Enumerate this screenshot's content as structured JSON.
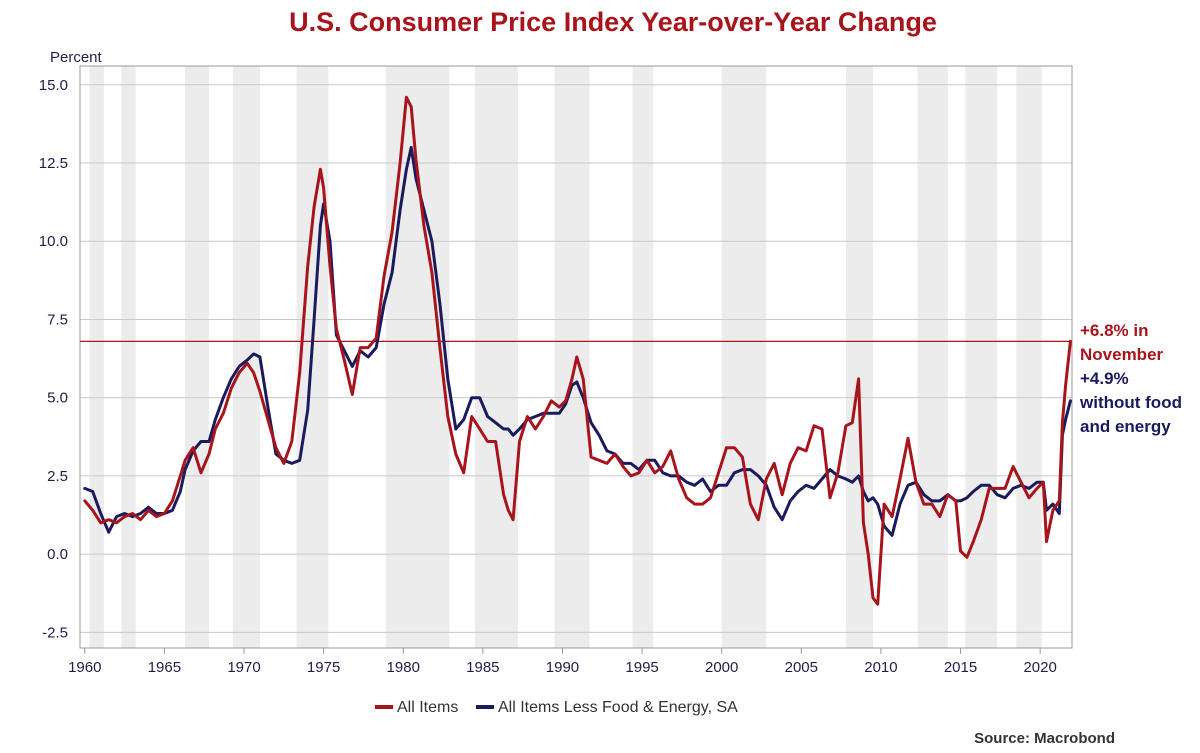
{
  "chart_data": {
    "type": "line",
    "title": "U.S. Consumer Price Index Year-over-Year Change",
    "ylabel": "Percent",
    "xlabel": "",
    "xlim": [
      1959.7,
      2022.0
    ],
    "ylim": [
      -3.0,
      15.6
    ],
    "yticks": [
      15.0,
      12.5,
      10.0,
      7.5,
      5.0,
      2.5,
      0.0,
      -2.5
    ],
    "ytick_labels": [
      "15.0",
      "12.5",
      "10.0",
      "7.5",
      "5.0",
      "2.5",
      "0.0",
      "-2.5"
    ],
    "xticks": [
      1960,
      1965,
      1970,
      1975,
      1980,
      1985,
      1990,
      1995,
      2000,
      2005,
      2010,
      2015,
      2020
    ],
    "xtick_labels": [
      "1960",
      "1965",
      "1970",
      "1975",
      "1980",
      "1985",
      "1990",
      "1995",
      "2000",
      "2005",
      "2010",
      "2015",
      "2020"
    ],
    "grid": "horizontal",
    "legend_position": "bottom-center",
    "shaded_periods": [
      [
        1960.3,
        1961.2
      ],
      [
        1962.3,
        1963.2
      ],
      [
        1966.3,
        1967.8
      ],
      [
        1969.3,
        1971.0
      ],
      [
        1973.3,
        1975.3
      ],
      [
        1978.9,
        1982.9
      ],
      [
        1984.5,
        1987.2
      ],
      [
        1989.5,
        1991.7
      ],
      [
        1994.4,
        1995.7
      ],
      [
        2000.0,
        2002.8
      ],
      [
        2007.8,
        2009.5
      ],
      [
        2012.3,
        2014.2
      ],
      [
        2015.3,
        2017.3
      ],
      [
        2018.5,
        2020.1
      ]
    ],
    "reference_line": {
      "y": 6.8,
      "color": "#a8141b"
    },
    "series": [
      {
        "name": "All Items",
        "color": "#a8141b",
        "x": [
          1960.0,
          1960.5,
          1961.0,
          1961.5,
          1962.0,
          1962.5,
          1963.0,
          1963.5,
          1964.0,
          1964.5,
          1965.0,
          1965.5,
          1966.0,
          1966.3,
          1966.8,
          1967.3,
          1967.8,
          1968.2,
          1968.7,
          1969.2,
          1969.7,
          1970.2,
          1970.6,
          1971.0,
          1971.5,
          1972.0,
          1972.5,
          1973.0,
          1973.5,
          1974.0,
          1974.4,
          1974.8,
          1975.0,
          1975.4,
          1975.8,
          1976.3,
          1976.8,
          1977.3,
          1977.8,
          1978.3,
          1978.8,
          1979.3,
          1979.8,
          1980.2,
          1980.5,
          1980.8,
          1981.3,
          1981.8,
          1982.3,
          1982.8,
          1983.3,
          1983.8,
          1984.3,
          1984.8,
          1985.3,
          1985.8,
          1986.3,
          1986.6,
          1986.9,
          1987.3,
          1987.8,
          1988.3,
          1988.8,
          1989.3,
          1989.8,
          1990.2,
          1990.6,
          1990.9,
          1991.3,
          1991.8,
          1992.3,
          1992.8,
          1993.3,
          1993.8,
          1994.3,
          1994.8,
          1995.3,
          1995.8,
          1996.3,
          1996.8,
          1997.3,
          1997.8,
          1998.3,
          1998.8,
          1999.3,
          1999.8,
          2000.3,
          2000.8,
          2001.3,
          2001.8,
          2002.3,
          2002.8,
          2003.3,
          2003.8,
          2004.3,
          2004.8,
          2005.3,
          2005.8,
          2006.3,
          2006.8,
          2007.3,
          2007.8,
          2008.2,
          2008.6,
          2008.9,
          2009.2,
          2009.5,
          2009.8,
          2010.2,
          2010.7,
          2011.2,
          2011.7,
          2012.2,
          2012.7,
          2013.2,
          2013.7,
          2014.2,
          2014.7,
          2015.0,
          2015.4,
          2015.8,
          2016.3,
          2016.8,
          2017.3,
          2017.8,
          2018.3,
          2018.8,
          2019.3,
          2019.8,
          2020.2,
          2020.4,
          2020.8,
          2021.2,
          2021.4,
          2021.6,
          2021.9
        ],
        "values": [
          1.7,
          1.4,
          1.0,
          1.1,
          1.0,
          1.2,
          1.3,
          1.1,
          1.4,
          1.2,
          1.3,
          1.7,
          2.5,
          3.0,
          3.4,
          2.6,
          3.2,
          4.0,
          4.5,
          5.3,
          5.8,
          6.1,
          5.8,
          5.2,
          4.3,
          3.4,
          2.9,
          3.6,
          5.8,
          9.2,
          11.1,
          12.3,
          11.7,
          9.2,
          7.2,
          6.2,
          5.1,
          6.6,
          6.6,
          6.9,
          8.9,
          10.3,
          12.5,
          14.6,
          14.3,
          12.6,
          10.5,
          9.0,
          6.6,
          4.4,
          3.2,
          2.6,
          4.4,
          4.0,
          3.6,
          3.6,
          1.9,
          1.4,
          1.1,
          3.6,
          4.4,
          4.0,
          4.4,
          4.9,
          4.7,
          4.9,
          5.6,
          6.3,
          5.6,
          3.1,
          3.0,
          2.9,
          3.2,
          2.8,
          2.5,
          2.6,
          3.0,
          2.6,
          2.8,
          3.3,
          2.4,
          1.8,
          1.6,
          1.6,
          1.8,
          2.6,
          3.4,
          3.4,
          3.1,
          1.6,
          1.1,
          2.4,
          2.9,
          1.9,
          2.9,
          3.4,
          3.3,
          4.1,
          4.0,
          1.8,
          2.6,
          4.1,
          4.2,
          5.6,
          1.0,
          0.0,
          -1.4,
          -1.6,
          1.6,
          1.2,
          2.4,
          3.7,
          2.3,
          1.6,
          1.6,
          1.2,
          1.9,
          1.7,
          0.1,
          -0.1,
          0.4,
          1.1,
          2.1,
          2.1,
          2.1,
          2.8,
          2.3,
          1.8,
          2.1,
          2.3,
          0.4,
          1.4,
          1.7,
          4.2,
          5.4,
          6.8
        ]
      },
      {
        "name": "All Items Less Food & Energy, SA",
        "color": "#1a1a5e",
        "x": [
          1960.0,
          1960.5,
          1961.0,
          1961.5,
          1962.0,
          1962.5,
          1963.0,
          1963.5,
          1964.0,
          1964.5,
          1965.0,
          1965.5,
          1966.0,
          1966.3,
          1966.8,
          1967.3,
          1967.8,
          1968.2,
          1968.7,
          1969.2,
          1969.7,
          1970.2,
          1970.6,
          1971.0,
          1971.5,
          1972.0,
          1972.5,
          1973.0,
          1973.5,
          1974.0,
          1974.4,
          1974.8,
          1975.0,
          1975.4,
          1975.8,
          1976.3,
          1976.8,
          1977.3,
          1977.8,
          1978.3,
          1978.8,
          1979.3,
          1979.8,
          1980.2,
          1980.5,
          1980.8,
          1981.3,
          1981.8,
          1982.3,
          1982.8,
          1983.3,
          1983.8,
          1984.3,
          1984.8,
          1985.3,
          1985.8,
          1986.3,
          1986.6,
          1986.9,
          1987.3,
          1987.8,
          1988.3,
          1988.8,
          1989.3,
          1989.8,
          1990.2,
          1990.6,
          1990.9,
          1991.3,
          1991.8,
          1992.3,
          1992.8,
          1993.3,
          1993.8,
          1994.3,
          1994.8,
          1995.3,
          1995.8,
          1996.3,
          1996.8,
          1997.3,
          1997.8,
          1998.3,
          1998.8,
          1999.3,
          1999.8,
          2000.3,
          2000.8,
          2001.3,
          2001.8,
          2002.3,
          2002.8,
          2003.3,
          2003.8,
          2004.3,
          2004.8,
          2005.3,
          2005.8,
          2006.3,
          2006.8,
          2007.3,
          2007.8,
          2008.2,
          2008.6,
          2008.9,
          2009.2,
          2009.5,
          2009.8,
          2010.2,
          2010.7,
          2011.2,
          2011.7,
          2012.2,
          2012.7,
          2013.2,
          2013.7,
          2014.2,
          2014.7,
          2015.0,
          2015.4,
          2015.8,
          2016.3,
          2016.8,
          2017.3,
          2017.8,
          2018.3,
          2018.8,
          2019.3,
          2019.8,
          2020.2,
          2020.4,
          2020.8,
          2021.2,
          2021.4,
          2021.6,
          2021.9
        ],
        "values": [
          2.1,
          2.0,
          1.3,
          0.7,
          1.2,
          1.3,
          1.2,
          1.3,
          1.5,
          1.3,
          1.3,
          1.4,
          2.0,
          2.7,
          3.3,
          3.6,
          3.6,
          4.3,
          5.0,
          5.6,
          6.0,
          6.2,
          6.4,
          6.3,
          4.7,
          3.2,
          3.0,
          2.9,
          3.0,
          4.6,
          7.5,
          10.5,
          11.2,
          10.0,
          7.0,
          6.5,
          6.0,
          6.5,
          6.3,
          6.6,
          8.0,
          9.0,
          11.0,
          12.3,
          13.0,
          12.0,
          11.0,
          10.0,
          8.0,
          5.6,
          4.0,
          4.3,
          5.0,
          5.0,
          4.4,
          4.2,
          4.0,
          4.0,
          3.8,
          4.0,
          4.3,
          4.4,
          4.5,
          4.5,
          4.5,
          4.8,
          5.4,
          5.5,
          5.0,
          4.2,
          3.8,
          3.3,
          3.2,
          2.9,
          2.9,
          2.7,
          3.0,
          3.0,
          2.6,
          2.5,
          2.5,
          2.3,
          2.2,
          2.4,
          2.0,
          2.2,
          2.2,
          2.6,
          2.7,
          2.7,
          2.5,
          2.2,
          1.5,
          1.1,
          1.7,
          2.0,
          2.2,
          2.1,
          2.4,
          2.7,
          2.5,
          2.4,
          2.3,
          2.5,
          2.0,
          1.7,
          1.8,
          1.6,
          0.9,
          0.6,
          1.6,
          2.2,
          2.3,
          1.9,
          1.7,
          1.7,
          1.9,
          1.7,
          1.7,
          1.8,
          2.0,
          2.2,
          2.2,
          1.9,
          1.8,
          2.1,
          2.2,
          2.1,
          2.3,
          2.3,
          1.4,
          1.6,
          1.3,
          3.8,
          4.3,
          4.9
        ]
      }
    ],
    "annotations": [
      {
        "lines": [
          "+6.8% in",
          "November"
        ],
        "color": "#a8141b"
      },
      {
        "lines": [
          "+4.9%",
          "without food",
          "and energy"
        ],
        "color": "#1a1a5e"
      }
    ]
  },
  "source": "Source: Macrobond"
}
